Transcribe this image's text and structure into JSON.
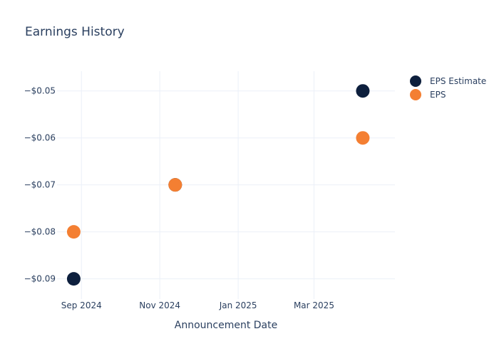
{
  "chart_data": {
    "type": "scatter",
    "title": "Earnings History",
    "xlabel": "Announcement Date",
    "ylabel": "",
    "x_ticks": [
      {
        "date": "2024-09-01",
        "label": "Sep 2024"
      },
      {
        "date": "2024-11-01",
        "label": "Nov 2024"
      },
      {
        "date": "2025-01-01",
        "label": "Jan 2025"
      },
      {
        "date": "2025-03-01",
        "label": "Mar 2025"
      }
    ],
    "y_ticks": [
      {
        "value": -0.05,
        "label": "−$0.05"
      },
      {
        "value": -0.06,
        "label": "−$0.06"
      },
      {
        "value": -0.07,
        "label": "−$0.07"
      },
      {
        "value": -0.08,
        "label": "−$0.08"
      },
      {
        "value": -0.09,
        "label": "−$0.09"
      }
    ],
    "xlim": [
      "2024-08-13",
      "2025-05-03"
    ],
    "ylim": [
      -0.0943,
      -0.0458
    ],
    "grid": true,
    "legend_position": "top-right",
    "series": [
      {
        "name": "EPS Estimate",
        "color": "#0d1f3d",
        "points": [
          {
            "x": "2024-08-26",
            "y": -0.09
          },
          {
            "x": "2024-11-13",
            "y": -0.07
          },
          {
            "x": "2025-04-08",
            "y": -0.05
          }
        ]
      },
      {
        "name": "EPS",
        "color": "#f47f32",
        "points": [
          {
            "x": "2024-08-26",
            "y": -0.08
          },
          {
            "x": "2024-11-13",
            "y": -0.07
          },
          {
            "x": "2025-04-08",
            "y": -0.06
          }
        ]
      }
    ]
  }
}
